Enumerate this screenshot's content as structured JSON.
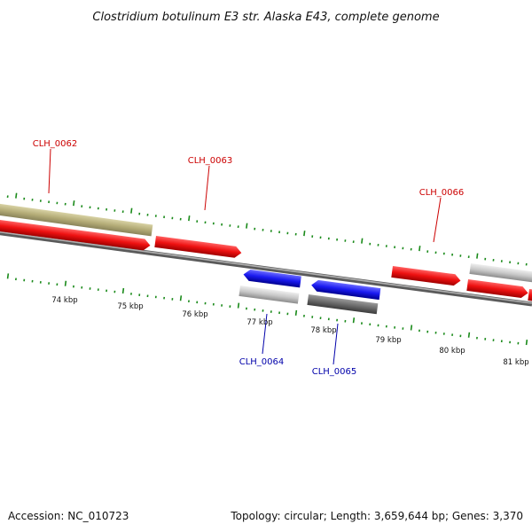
{
  "title": "Clostridium botulinum E3 str. Alaska E43, complete genome",
  "footer": {
    "accession": "Accession: NC_010723",
    "summary": "Topology: circular; Length: 3,659,644 bp; Genes: 3,370"
  },
  "colors": {
    "forward_gene": "#ee1111",
    "reverse_gene": "#1a1af0",
    "gene_label_forward": "#cc0000",
    "gene_label_reverse": "#0000aa",
    "rna_feature": "#b5ad78",
    "grey_feature": "#c8c8c8",
    "dark_grey_feature": "#6b6b6b",
    "backbone": "#8a8a8a",
    "tick": "#1a8a1a"
  },
  "ticks": [
    {
      "label": "74 kbp"
    },
    {
      "label": "75 kbp"
    },
    {
      "label": "76 kbp"
    },
    {
      "label": "77 kbp"
    },
    {
      "label": "78 kbp"
    },
    {
      "label": "79 kbp"
    },
    {
      "label": "80 kbp"
    },
    {
      "label": "81 kbp"
    }
  ],
  "gene_labels": [
    {
      "name": "CLH_0062",
      "strand": "forward"
    },
    {
      "name": "CLH_0063",
      "strand": "forward"
    },
    {
      "name": "CLH_0066",
      "strand": "forward"
    },
    {
      "name": "CLH_0064",
      "strand": "reverse"
    },
    {
      "name": "CLH_0065",
      "strand": "reverse"
    }
  ]
}
